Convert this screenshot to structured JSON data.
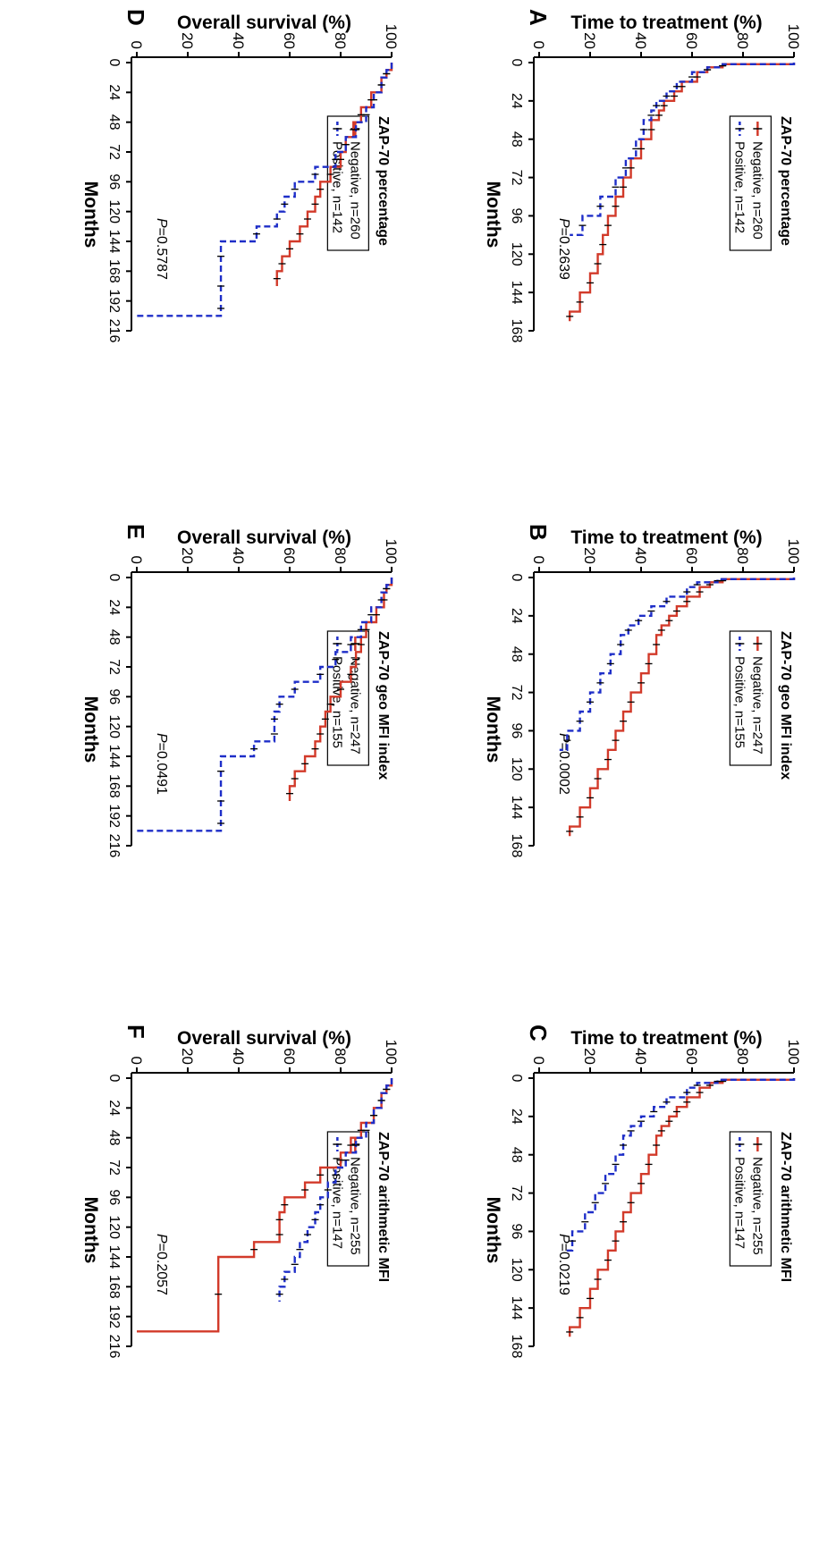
{
  "chart_data": [
    {
      "type": "line",
      "panel_letter": "A",
      "title": "ZAP-70 percentage",
      "xlabel": "Months",
      "ylabel": "Time to treatment (%)",
      "xlim": [
        0,
        168
      ],
      "ylim": [
        0,
        100
      ],
      "x_ticks": [
        0,
        24,
        48,
        72,
        96,
        120,
        144,
        168
      ],
      "y_ticks": [
        0,
        20,
        40,
        60,
        80,
        100
      ],
      "p_value": "=0.2639",
      "legend_position": "top-right",
      "series": [
        {
          "name": "Negative, n=260",
          "color": "#d23a2a",
          "style": "solid",
          "x": [
            0,
            1,
            3,
            6,
            12,
            18,
            24,
            30,
            36,
            48,
            60,
            72,
            84,
            96,
            108,
            120,
            132,
            144,
            156,
            162
          ],
          "y": [
            100,
            72,
            66,
            62,
            56,
            53,
            49,
            47,
            44,
            40,
            36,
            33,
            30,
            27,
            25,
            23,
            20,
            16,
            12,
            12
          ]
        },
        {
          "name": "Positive, n=142",
          "color": "#1e2ec8",
          "style": "dashed",
          "x": [
            0,
            1,
            3,
            6,
            12,
            18,
            24,
            30,
            36,
            48,
            60,
            72,
            84,
            96,
            108
          ],
          "y": [
            100,
            72,
            66,
            60,
            54,
            50,
            46,
            44,
            41,
            38,
            34,
            30,
            24,
            17,
            12
          ]
        }
      ]
    },
    {
      "type": "line",
      "panel_letter": "B",
      "title": "ZAP-70 geo MFI index",
      "xlabel": "Months",
      "ylabel": "Time to treatment (%)",
      "xlim": [
        0,
        168
      ],
      "ylim": [
        0,
        100
      ],
      "x_ticks": [
        0,
        24,
        48,
        72,
        96,
        120,
        144,
        168
      ],
      "y_ticks": [
        0,
        20,
        40,
        60,
        80,
        100
      ],
      "p_value": "=0.0002",
      "legend_position": "top-right",
      "series": [
        {
          "name": "Negative, n=247",
          "color": "#d23a2a",
          "style": "solid",
          "x": [
            0,
            1,
            3,
            6,
            12,
            18,
            24,
            30,
            36,
            48,
            60,
            72,
            84,
            96,
            108,
            120,
            132,
            144,
            156,
            162
          ],
          "y": [
            100,
            72,
            67,
            63,
            58,
            54,
            51,
            48,
            46,
            43,
            40,
            36,
            33,
            30,
            27,
            23,
            20,
            16,
            12,
            12
          ]
        },
        {
          "name": "Positive, n=155",
          "color": "#1e2ec8",
          "style": "dashed",
          "x": [
            0,
            1,
            3,
            6,
            12,
            18,
            24,
            30,
            36,
            48,
            60,
            72,
            84,
            96,
            108
          ],
          "y": [
            100,
            70,
            62,
            58,
            50,
            44,
            39,
            35,
            32,
            28,
            24,
            20,
            16,
            11,
            8
          ]
        }
      ]
    },
    {
      "type": "line",
      "panel_letter": "C",
      "title": "ZAP-70 arithmetic MFI",
      "xlabel": "Months",
      "ylabel": "Time to treatment (%)",
      "xlim": [
        0,
        168
      ],
      "ylim": [
        0,
        100
      ],
      "x_ticks": [
        0,
        24,
        48,
        72,
        96,
        120,
        144,
        168
      ],
      "y_ticks": [
        0,
        20,
        40,
        60,
        80,
        100
      ],
      "p_value": "=0.0219",
      "legend_position": "top-right",
      "series": [
        {
          "name": "Negative, n=255",
          "color": "#d23a2a",
          "style": "solid",
          "x": [
            0,
            1,
            3,
            6,
            12,
            18,
            24,
            30,
            36,
            48,
            60,
            72,
            84,
            96,
            108,
            120,
            132,
            144,
            156,
            162
          ],
          "y": [
            100,
            72,
            67,
            63,
            58,
            54,
            51,
            48,
            46,
            43,
            40,
            36,
            33,
            30,
            27,
            23,
            20,
            16,
            12,
            12
          ]
        },
        {
          "name": "Positive, n=147",
          "color": "#1e2ec8",
          "style": "dashed",
          "x": [
            0,
            1,
            3,
            6,
            12,
            18,
            24,
            30,
            36,
            48,
            60,
            72,
            84,
            96,
            108
          ],
          "y": [
            100,
            70,
            62,
            58,
            50,
            45,
            40,
            36,
            33,
            30,
            26,
            22,
            18,
            13,
            10
          ]
        }
      ]
    },
    {
      "type": "line",
      "panel_letter": "D",
      "title": "ZAP-70 percentage",
      "xlabel": "Months",
      "ylabel": "Overall survival (%)",
      "xlim": [
        0,
        216
      ],
      "ylim": [
        0,
        100
      ],
      "x_ticks": [
        0,
        24,
        48,
        72,
        96,
        120,
        144,
        168,
        192,
        216
      ],
      "y_ticks": [
        0,
        20,
        40,
        60,
        80,
        100
      ],
      "p_value": "=0.5787",
      "legend_position": "top-right",
      "series": [
        {
          "name": "Negative, n=260",
          "color": "#d23a2a",
          "style": "solid",
          "x": [
            0,
            6,
            12,
            24,
            36,
            48,
            60,
            72,
            84,
            96,
            108,
            120,
            132,
            144,
            156,
            168,
            180
          ],
          "y": [
            100,
            98,
            96,
            92,
            88,
            85,
            82,
            80,
            76,
            72,
            70,
            67,
            64,
            60,
            57,
            55,
            55
          ]
        },
        {
          "name": "Positive, n=142",
          "color": "#1e2ec8",
          "style": "dashed",
          "x": [
            0,
            6,
            12,
            24,
            36,
            48,
            60,
            72,
            84,
            96,
            108,
            120,
            132,
            144,
            168,
            192,
            204
          ],
          "y": [
            100,
            98,
            96,
            93,
            90,
            86,
            82,
            78,
            70,
            62,
            58,
            55,
            47,
            33,
            33,
            33,
            0
          ]
        }
      ]
    },
    {
      "type": "line",
      "panel_letter": "E",
      "title": "ZAP-70 geo MFI index",
      "xlabel": "Months",
      "ylabel": "Overall survival (%)",
      "xlim": [
        0,
        216
      ],
      "ylim": [
        0,
        100
      ],
      "x_ticks": [
        0,
        24,
        48,
        72,
        96,
        120,
        144,
        168,
        192,
        216
      ],
      "y_ticks": [
        0,
        20,
        40,
        60,
        80,
        100
      ],
      "p_value": "=0.0491",
      "legend_position": "top-right",
      "series": [
        {
          "name": "Negative, n=247",
          "color": "#d23a2a",
          "style": "solid",
          "x": [
            0,
            6,
            12,
            24,
            36,
            48,
            60,
            72,
            84,
            96,
            108,
            120,
            132,
            144,
            156,
            168,
            180
          ],
          "y": [
            100,
            98,
            97,
            94,
            90,
            88,
            86,
            84,
            80,
            76,
            74,
            72,
            70,
            66,
            62,
            60,
            60
          ]
        },
        {
          "name": "Positive, n=155",
          "color": "#1e2ec8",
          "style": "dashed",
          "x": [
            0,
            6,
            12,
            24,
            36,
            48,
            60,
            72,
            84,
            96,
            108,
            120,
            132,
            144,
            168,
            192,
            204
          ],
          "y": [
            100,
            98,
            96,
            92,
            88,
            84,
            78,
            72,
            62,
            56,
            54,
            54,
            46,
            33,
            33,
            33,
            0
          ]
        }
      ]
    },
    {
      "type": "line",
      "panel_letter": "F",
      "title": "ZAP-70 arithmetic MFI",
      "xlabel": "Months",
      "ylabel": "Overall survival (%)",
      "xlim": [
        0,
        216
      ],
      "ylim": [
        0,
        100
      ],
      "x_ticks": [
        0,
        24,
        48,
        72,
        96,
        120,
        144,
        168,
        192,
        216
      ],
      "y_ticks": [
        0,
        20,
        40,
        60,
        80,
        100
      ],
      "p_value": "=0.2057",
      "legend_position": "top-right",
      "series": [
        {
          "name": "Negative, n=255",
          "color": "#d23a2a",
          "style": "solid",
          "x": [
            0,
            6,
            12,
            24,
            36,
            48,
            60,
            72,
            84,
            96,
            108,
            120,
            132,
            144,
            204
          ],
          "y": [
            100,
            98,
            96,
            93,
            88,
            84,
            80,
            72,
            66,
            58,
            56,
            56,
            46,
            32,
            0
          ]
        },
        {
          "name": "Positive, n=147",
          "color": "#1e2ec8",
          "style": "dashed",
          "x": [
            0,
            6,
            12,
            24,
            36,
            48,
            60,
            72,
            84,
            96,
            108,
            120,
            132,
            144,
            156,
            168,
            180
          ],
          "y": [
            100,
            98,
            96,
            93,
            90,
            86,
            82,
            78,
            75,
            72,
            70,
            67,
            64,
            62,
            58,
            56,
            56
          ]
        }
      ]
    }
  ]
}
